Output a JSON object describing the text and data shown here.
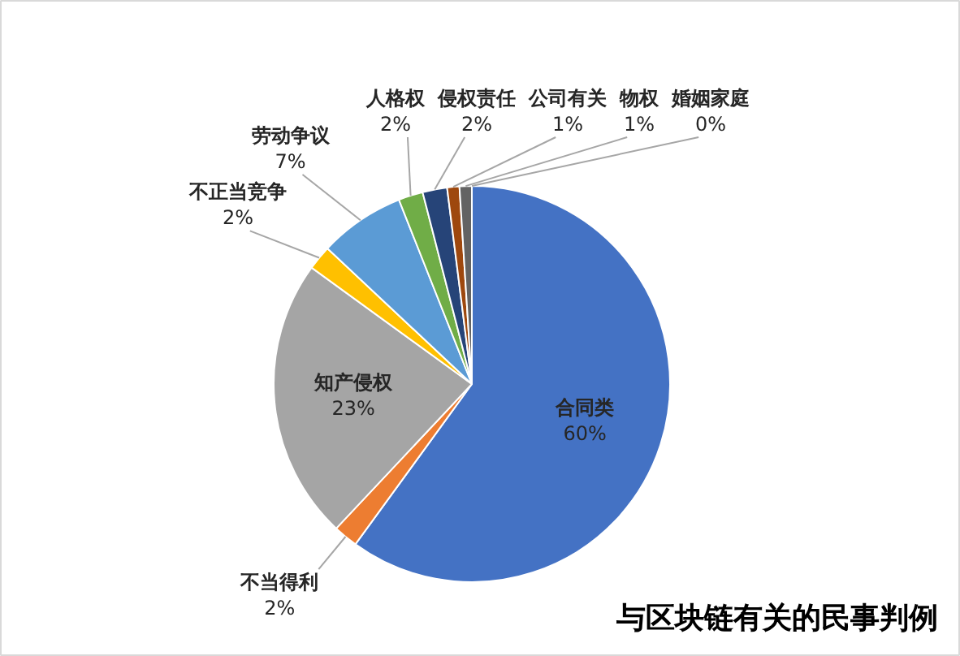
{
  "chart_data": {
    "type": "pie",
    "title": "与区块链有关的民事判例",
    "categories": [
      "合同类",
      "不当得利",
      "知产侵权",
      "不正当竞争",
      "劳动争议",
      "人格权",
      "侵权责任",
      "公司有关",
      "物权",
      "婚姻家庭"
    ],
    "values": [
      60,
      2,
      23,
      2,
      7,
      2,
      2,
      1,
      1,
      0
    ],
    "colors": [
      "#4472c4",
      "#ed7d31",
      "#a5a5a5",
      "#ffc000",
      "#5b9bd5",
      "#70ad47",
      "#264478",
      "#9e480e",
      "#636363",
      "#997300"
    ],
    "value_labels": [
      "60%",
      "2%",
      "23%",
      "2%",
      "7%",
      "2%",
      "2%",
      "1%",
      "1%",
      "0%"
    ]
  }
}
